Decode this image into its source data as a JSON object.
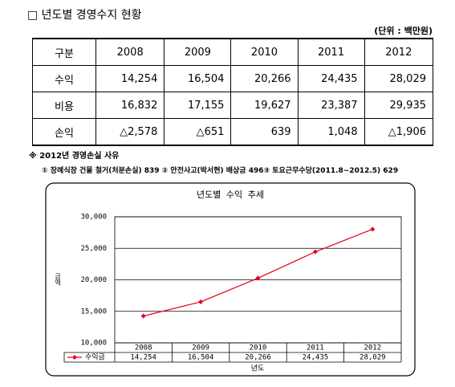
{
  "header": {
    "title": "□ 년도별 경영수지 현황",
    "unit": "(단위 : 백만원)"
  },
  "table": {
    "rows": [
      [
        "구분",
        "2008",
        "2009",
        "2010",
        "2011",
        "2012"
      ],
      [
        "수익",
        "14,254",
        "16,504",
        "20,266",
        "24,435",
        "28,029"
      ],
      [
        "비용",
        "16,832",
        "17,155",
        "19,627",
        "23,387",
        "29,935"
      ],
      [
        "손익",
        "△2,578",
        "△651",
        "639",
        "1,048",
        "△1,906"
      ]
    ]
  },
  "note": {
    "title": "※ 2012년 경영손실 사유",
    "text": "① 장례식장 건물 철거(처분손실) 839  ② 안전사고(박서현) 배상금 496③ 토요근무수당(2011.8~2012.5) 629"
  },
  "chart_data": {
    "type": "line",
    "title": "년도별 수익 추세",
    "y_label": "금액",
    "x_label": "년도",
    "categories": [
      "2008",
      "2009",
      "2010",
      "2011",
      "2012"
    ],
    "series": [
      {
        "name": "수익금",
        "color": "#e8001c",
        "values": [
          14254,
          16504,
          20266,
          24435,
          28029
        ],
        "value_labels": [
          "14,254",
          "16,504",
          "20,266",
          "24,435",
          "28,029"
        ]
      }
    ],
    "ylim": [
      10000,
      30000
    ],
    "yticks": [
      {
        "value": 10000,
        "label": "10,000"
      },
      {
        "value": 15000,
        "label": "15,000"
      },
      {
        "value": 20000,
        "label": "20,000"
      },
      {
        "value": 25000,
        "label": "25,000"
      },
      {
        "value": 30000,
        "label": "30,000"
      }
    ],
    "grid": true,
    "data_table": true
  }
}
